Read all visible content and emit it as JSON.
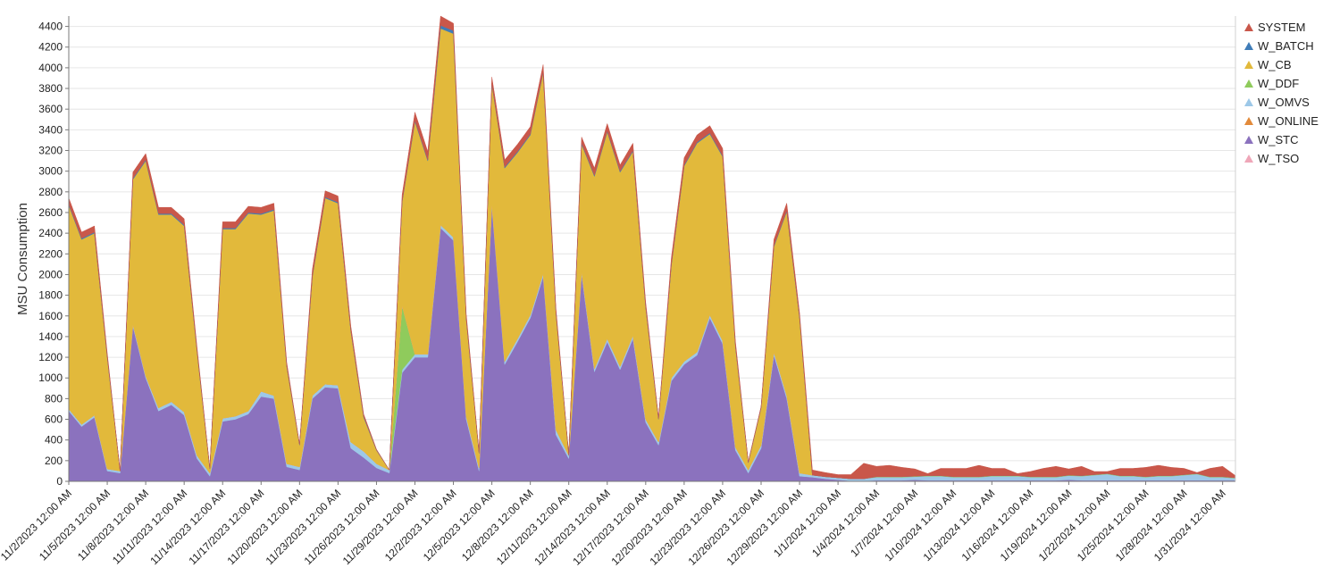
{
  "chart_data": {
    "type": "area",
    "stacked": true,
    "ylabel": "MSU Consumption",
    "xlabel": "",
    "ylim": [
      0,
      4500
    ],
    "y_ticks": [
      0,
      200,
      400,
      600,
      800,
      1000,
      1200,
      1400,
      1600,
      1800,
      2000,
      2200,
      2400,
      2600,
      2800,
      3000,
      3200,
      3400,
      3600,
      3800,
      4000,
      4200,
      4400
    ],
    "grid": true,
    "legend_position": "right",
    "x_tick_labels": [
      "11/2/2023 12:00 AM",
      "11/5/2023 12:00 AM",
      "11/8/2023 12:00 AM",
      "11/11/2023 12:00 AM",
      "11/14/2023 12:00 AM",
      "11/17/2023 12:00 AM",
      "11/20/2023 12:00 AM",
      "11/23/2023 12:00 AM",
      "11/26/2023 12:00 AM",
      "11/29/2023 12:00 AM",
      "12/2/2023 12:00 AM",
      "12/5/2023 12:00 AM",
      "12/8/2023 12:00 AM",
      "12/11/2023 12:00 AM",
      "12/14/2023 12:00 AM",
      "12/17/2023 12:00 AM",
      "12/20/2023 12:00 AM",
      "12/23/2023 12:00 AM",
      "12/26/2023 12:00 AM",
      "12/29/2023 12:00 AM",
      "1/1/2024 12:00 AM",
      "1/4/2024 12:00 AM",
      "1/7/2024 12:00 AM",
      "1/10/2024 12:00 AM",
      "1/13/2024 12:00 AM",
      "1/16/2024 12:00 AM",
      "1/19/2024 12:00 AM",
      "1/22/2024 12:00 AM",
      "1/25/2024 12:00 AM",
      "1/28/2024 12:00 AM",
      "1/31/2024 12:00 AM"
    ],
    "x": [
      "11/2/2023",
      "11/3/2023",
      "11/4/2023",
      "11/5/2023",
      "11/6/2023",
      "11/7/2023",
      "11/8/2023",
      "11/9/2023",
      "11/10/2023",
      "11/11/2023",
      "11/12/2023",
      "11/13/2023",
      "11/14/2023",
      "11/15/2023",
      "11/16/2023",
      "11/17/2023",
      "11/18/2023",
      "11/19/2023",
      "11/20/2023",
      "11/21/2023",
      "11/22/2023",
      "11/23/2023",
      "11/24/2023",
      "11/25/2023",
      "11/26/2023",
      "11/27/2023",
      "11/28/2023",
      "11/29/2023",
      "11/30/2023",
      "12/1/2023",
      "12/2/2023",
      "12/3/2023",
      "12/4/2023",
      "12/5/2023",
      "12/6/2023",
      "12/7/2023",
      "12/8/2023",
      "12/9/2023",
      "12/10/2023",
      "12/11/2023",
      "12/12/2023",
      "12/13/2023",
      "12/14/2023",
      "12/15/2023",
      "12/16/2023",
      "12/17/2023",
      "12/18/2023",
      "12/19/2023",
      "12/20/2023",
      "12/21/2023",
      "12/22/2023",
      "12/23/2023",
      "12/24/2023",
      "12/25/2023",
      "12/26/2023",
      "12/27/2023",
      "12/28/2023",
      "12/29/2023",
      "12/30/2023",
      "12/31/2023",
      "1/1/2024",
      "1/2/2024",
      "1/3/2024",
      "1/4/2024",
      "1/5/2024",
      "1/6/2024",
      "1/7/2024",
      "1/8/2024",
      "1/9/2024",
      "1/10/2024",
      "1/11/2024",
      "1/12/2024",
      "1/13/2024",
      "1/14/2024",
      "1/15/2024",
      "1/16/2024",
      "1/17/2024",
      "1/18/2024",
      "1/19/2024",
      "1/20/2024",
      "1/21/2024",
      "1/22/2024",
      "1/23/2024",
      "1/24/2024",
      "1/25/2024",
      "1/26/2024",
      "1/27/2024",
      "1/28/2024",
      "1/29/2024",
      "1/30/2024",
      "1/31/2024",
      "2/1/2024"
    ],
    "series": [
      {
        "name": "W_STC",
        "color": "#8B72BE",
        "values": [
          680,
          530,
          620,
          100,
          80,
          1500,
          1000,
          680,
          740,
          640,
          220,
          50,
          580,
          600,
          650,
          820,
          800,
          140,
          110,
          800,
          910,
          900,
          320,
          230,
          130,
          80,
          1050,
          1200,
          1200,
          2450,
          2330,
          600,
          100,
          2660,
          1130,
          1350,
          1580,
          1980,
          450,
          220,
          2000,
          1060,
          1350,
          1080,
          1380,
          570,
          350,
          970,
          1130,
          1220,
          1580,
          1330,
          300,
          80,
          320,
          1220,
          800,
          50,
          40,
          25,
          15,
          5,
          5,
          10,
          10,
          10,
          15,
          10,
          10,
          10,
          10,
          10,
          10,
          10,
          10,
          10,
          10,
          10,
          15,
          10,
          10,
          10,
          10,
          10,
          10,
          10,
          10,
          10,
          10,
          10,
          10,
          10
        ]
      },
      {
        "name": "W_OMVS",
        "color": "#9DC8E8",
        "values": [
          20,
          20,
          20,
          20,
          20,
          20,
          20,
          30,
          30,
          30,
          30,
          30,
          30,
          30,
          30,
          50,
          30,
          30,
          30,
          30,
          30,
          30,
          60,
          60,
          40,
          30,
          30,
          30,
          30,
          30,
          30,
          30,
          30,
          30,
          30,
          30,
          30,
          30,
          50,
          30,
          30,
          30,
          30,
          30,
          30,
          30,
          30,
          30,
          30,
          30,
          30,
          30,
          30,
          30,
          30,
          30,
          30,
          30,
          20,
          20,
          20,
          20,
          20,
          30,
          30,
          30,
          30,
          40,
          40,
          30,
          30,
          30,
          40,
          40,
          40,
          30,
          30,
          30,
          40,
          40,
          50,
          60,
          40,
          40,
          30,
          40,
          40,
          50,
          60,
          30,
          30,
          20
        ]
      },
      {
        "name": "W_DDF",
        "color": "#8FCB5C",
        "values": [
          0,
          0,
          0,
          0,
          0,
          0,
          0,
          0,
          0,
          0,
          0,
          0,
          0,
          0,
          0,
          0,
          0,
          0,
          0,
          0,
          0,
          0,
          0,
          0,
          0,
          0,
          620,
          0,
          0,
          0,
          0,
          0,
          0,
          0,
          0,
          0,
          0,
          0,
          0,
          0,
          0,
          0,
          0,
          0,
          0,
          0,
          0,
          0,
          0,
          0,
          0,
          0,
          0,
          0,
          0,
          0,
          0,
          0,
          0,
          0,
          0,
          0,
          0,
          5,
          5,
          5,
          5,
          5,
          5,
          5,
          5,
          5,
          5,
          5,
          5,
          5,
          5,
          5,
          5,
          5,
          5,
          5,
          5,
          5,
          5,
          5,
          5,
          5,
          5,
          5,
          5,
          5
        ]
      },
      {
        "name": "W_ONLINE",
        "color": "#E28A3A",
        "values": [
          0,
          0,
          0,
          0,
          0,
          0,
          0,
          0,
          0,
          0,
          0,
          0,
          0,
          0,
          0,
          0,
          0,
          0,
          0,
          0,
          0,
          0,
          0,
          0,
          0,
          0,
          0,
          0,
          0,
          0,
          0,
          0,
          0,
          0,
          0,
          0,
          0,
          0,
          0,
          0,
          0,
          0,
          0,
          0,
          0,
          0,
          0,
          0,
          0,
          0,
          0,
          0,
          0,
          0,
          0,
          0,
          0,
          0,
          0,
          0,
          0,
          0,
          0,
          0,
          0,
          0,
          0,
          0,
          0,
          0,
          0,
          0,
          0,
          0,
          0,
          0,
          0,
          0,
          0,
          0,
          0,
          0,
          0,
          0,
          0,
          0,
          0,
          0,
          0,
          0,
          0,
          0
        ]
      },
      {
        "name": "W_TSO",
        "color": "#EFA6B8",
        "values": [
          0,
          0,
          0,
          0,
          0,
          0,
          0,
          0,
          0,
          0,
          0,
          0,
          0,
          0,
          0,
          0,
          0,
          0,
          0,
          0,
          0,
          0,
          0,
          0,
          0,
          0,
          0,
          0,
          0,
          0,
          0,
          0,
          0,
          0,
          0,
          0,
          0,
          0,
          0,
          0,
          0,
          0,
          0,
          0,
          0,
          0,
          0,
          0,
          0,
          0,
          0,
          0,
          0,
          0,
          0,
          0,
          0,
          0,
          0,
          0,
          0,
          0,
          0,
          0,
          0,
          0,
          0,
          0,
          0,
          0,
          0,
          0,
          0,
          0,
          0,
          0,
          0,
          0,
          0,
          0,
          0,
          0,
          0,
          0,
          0,
          0,
          0,
          0,
          0,
          0,
          0,
          0
        ]
      },
      {
        "name": "W_CB",
        "color": "#E2B93B",
        "values": [
          1970,
          1790,
          1760,
          1080,
          0,
          1400,
          2080,
          1870,
          1810,
          1800,
          1010,
          40,
          1830,
          1810,
          1910,
          1710,
          1790,
          940,
          210,
          1150,
          1800,
          1760,
          1070,
          330,
          130,
          0,
          1000,
          2250,
          1870,
          1900,
          1970,
          940,
          140,
          1150,
          1870,
          1800,
          1740,
          1940,
          1120,
          0,
          1230,
          1860,
          2000,
          1880,
          1780,
          1080,
          220,
          1090,
          1890,
          2020,
          1750,
          1780,
          970,
          70,
          360,
          1020,
          1780,
          1500,
          0,
          0,
          0,
          0,
          0,
          0,
          0,
          0,
          0,
          0,
          0,
          0,
          0,
          0,
          0,
          0,
          0,
          0,
          0,
          0,
          0,
          0,
          0,
          0,
          0,
          0,
          0,
          0,
          0,
          0,
          0,
          0,
          0,
          0
        ]
      },
      {
        "name": "W_BATCH",
        "color": "#3F7CB8",
        "values": [
          10,
          10,
          10,
          10,
          0,
          10,
          10,
          10,
          10,
          10,
          10,
          5,
          10,
          10,
          10,
          10,
          10,
          10,
          5,
          10,
          10,
          10,
          10,
          10,
          5,
          0,
          10,
          10,
          10,
          30,
          30,
          10,
          5,
          10,
          10,
          10,
          10,
          10,
          10,
          5,
          10,
          10,
          10,
          10,
          10,
          10,
          5,
          10,
          10,
          10,
          10,
          10,
          10,
          5,
          5,
          10,
          10,
          10,
          0,
          0,
          0,
          0,
          0,
          0,
          0,
          0,
          0,
          0,
          0,
          0,
          0,
          0,
          0,
          0,
          0,
          0,
          0,
          0,
          0,
          0,
          0,
          0,
          0,
          0,
          0,
          0,
          0,
          0,
          0,
          0,
          0,
          0
        ]
      },
      {
        "name": "SYSTEM",
        "color": "#C9574A",
        "values": [
          60,
          60,
          60,
          30,
          0,
          60,
          60,
          60,
          60,
          60,
          30,
          5,
          60,
          60,
          60,
          60,
          60,
          30,
          5,
          60,
          60,
          60,
          40,
          20,
          5,
          0,
          60,
          80,
          80,
          90,
          70,
          40,
          10,
          60,
          70,
          70,
          70,
          70,
          40,
          5,
          60,
          70,
          70,
          60,
          70,
          40,
          10,
          60,
          70,
          70,
          70,
          70,
          40,
          5,
          10,
          60,
          70,
          40,
          50,
          40,
          30,
          40,
          150,
          100,
          110,
          90,
          70,
          20,
          70,
          80,
          80,
          110,
          70,
          70,
          20,
          50,
          80,
          100,
          60,
          90,
          30,
          20,
          70,
          70,
          90,
          100,
          80,
          60,
          10,
          80,
          100,
          20
        ]
      }
    ],
    "legend": [
      "SYSTEM",
      "W_BATCH",
      "W_CB",
      "W_DDF",
      "W_OMVS",
      "W_ONLINE",
      "W_STC",
      "W_TSO"
    ]
  }
}
